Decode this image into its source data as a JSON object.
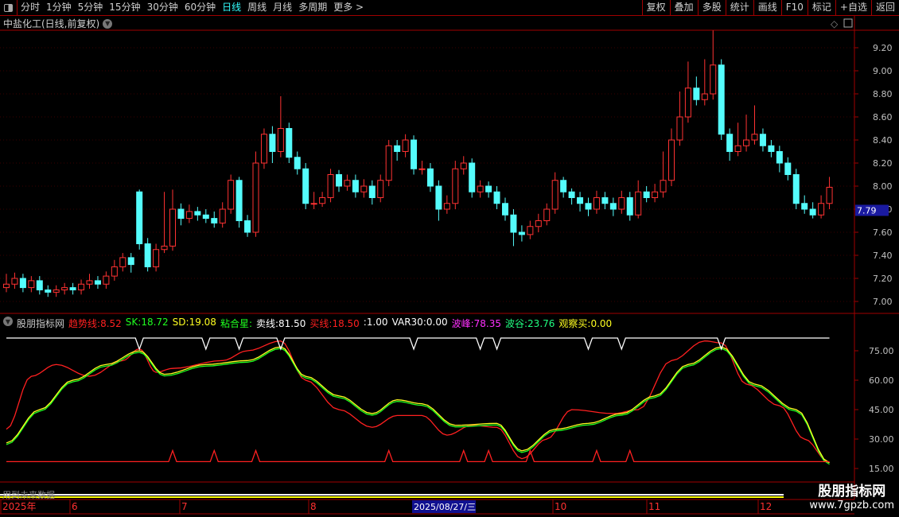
{
  "toolbar": {
    "periods": [
      "分时",
      "1分钟",
      "5分钟",
      "15分钟",
      "30分钟",
      "60分钟",
      "日线",
      "周线",
      "月线",
      "多周期",
      "更多 >"
    ],
    "active": "日线",
    "buttons": [
      "复权",
      "叠加",
      "多股",
      "统计",
      "画线",
      "F10",
      "标记",
      "+自选",
      "返回"
    ]
  },
  "chart_title": "中盐化工(日线,前复权)",
  "price_axis": {
    "ticks": [
      "9.20",
      "9.00",
      "8.80",
      "8.60",
      "8.40",
      "8.20",
      "8.00",
      "7.80",
      "7.60",
      "7.40",
      "7.20",
      "7.00"
    ],
    "current": "7.79"
  },
  "indicator": {
    "name": "股朋指标网",
    "values": [
      {
        "label": "趋势线:",
        "value": "8.52",
        "color": "#ff2020"
      },
      {
        "label": "SK:",
        "value": "18.72",
        "color": "#20ff20"
      },
      {
        "label": "SD:",
        "value": "19.08",
        "color": "#ffff20"
      },
      {
        "label": "粘合星:",
        "value": "",
        "color": "#20ff20"
      },
      {
        "label": "卖线:",
        "value": "81.50",
        "color": "#ffffff"
      },
      {
        "label": "买线:",
        "value": "18.50",
        "color": "#ff2020"
      },
      {
        "label": ":",
        "value": "1.00",
        "color": "#ffffff"
      },
      {
        "label": "VAR30:",
        "value": "0.00",
        "color": "#ffffff"
      },
      {
        "label": "波峰:",
        "value": "78.35",
        "color": "#ff30ff"
      },
      {
        "label": "波谷:",
        "value": "23.76",
        "color": "#20ff80"
      },
      {
        "label": "观察买:",
        "value": "0.00",
        "color": "#ffff20"
      }
    ],
    "ticks": [
      "75.00",
      "60.00",
      "45.00",
      "30.00",
      "15.00"
    ]
  },
  "footer_note": "用到未来数据",
  "date_axis": {
    "labels": [
      "2025年",
      "6",
      "7",
      "8",
      "10",
      "11",
      "12"
    ],
    "highlight": "2025/08/27/三"
  },
  "watermark": {
    "line1": "股朋指标网",
    "line2": "www.7gpzb.com"
  },
  "colors": {
    "up": "#ff3232",
    "down": "#54fcfc",
    "frame": "#a00000"
  },
  "chart_data": {
    "type": "candlestick",
    "ohlc": [
      [
        7.12,
        7.24,
        7.08,
        7.15
      ],
      [
        7.15,
        7.25,
        7.11,
        7.2
      ],
      [
        7.2,
        7.24,
        7.08,
        7.12
      ],
      [
        7.12,
        7.22,
        7.08,
        7.18
      ],
      [
        7.18,
        7.22,
        7.06,
        7.1
      ],
      [
        7.1,
        7.14,
        7.04,
        7.08
      ],
      [
        7.08,
        7.14,
        7.04,
        7.1
      ],
      [
        7.1,
        7.16,
        7.06,
        7.12
      ],
      [
        7.12,
        7.16,
        7.06,
        7.1
      ],
      [
        7.1,
        7.19,
        7.06,
        7.15
      ],
      [
        7.15,
        7.24,
        7.11,
        7.18
      ],
      [
        7.18,
        7.22,
        7.11,
        7.15
      ],
      [
        7.15,
        7.26,
        7.11,
        7.22
      ],
      [
        7.22,
        7.36,
        7.18,
        7.3
      ],
      [
        7.3,
        7.42,
        7.26,
        7.38
      ],
      [
        7.38,
        7.42,
        7.25,
        7.32
      ],
      [
        7.95,
        7.97,
        7.45,
        7.5
      ],
      [
        7.5,
        7.55,
        7.26,
        7.3
      ],
      [
        7.3,
        7.5,
        7.26,
        7.45
      ],
      [
        7.45,
        7.95,
        7.42,
        7.48
      ],
      [
        7.48,
        7.97,
        7.44,
        7.8
      ],
      [
        7.8,
        7.85,
        7.66,
        7.72
      ],
      [
        7.72,
        7.84,
        7.68,
        7.78
      ],
      [
        7.78,
        7.82,
        7.7,
        7.75
      ],
      [
        7.75,
        7.8,
        7.68,
        7.72
      ],
      [
        7.72,
        7.78,
        7.64,
        7.68
      ],
      [
        7.68,
        7.86,
        7.64,
        7.8
      ],
      [
        7.8,
        8.1,
        7.76,
        8.05
      ],
      [
        8.05,
        8.08,
        7.64,
        7.7
      ],
      [
        7.7,
        7.75,
        7.56,
        7.6
      ],
      [
        7.6,
        8.3,
        7.56,
        8.2
      ],
      [
        8.2,
        8.5,
        8.15,
        8.45
      ],
      [
        8.45,
        8.52,
        8.2,
        8.3
      ],
      [
        8.3,
        8.78,
        8.25,
        8.5
      ],
      [
        8.5,
        8.55,
        8.2,
        8.25
      ],
      [
        8.25,
        8.3,
        8.1,
        8.15
      ],
      [
        8.15,
        8.2,
        7.8,
        7.85
      ],
      [
        7.85,
        7.95,
        7.8,
        7.85
      ],
      [
        7.85,
        7.95,
        7.82,
        7.9
      ],
      [
        7.9,
        8.15,
        7.86,
        8.1
      ],
      [
        8.1,
        8.14,
        7.95,
        8.0
      ],
      [
        8.0,
        8.1,
        7.96,
        8.05
      ],
      [
        8.05,
        8.1,
        7.9,
        7.95
      ],
      [
        7.95,
        8.06,
        7.9,
        8.0
      ],
      [
        8.0,
        8.05,
        7.84,
        7.9
      ],
      [
        7.9,
        8.1,
        7.86,
        8.05
      ],
      [
        8.05,
        8.4,
        8.0,
        8.35
      ],
      [
        8.35,
        8.4,
        8.22,
        8.3
      ],
      [
        8.3,
        8.45,
        8.25,
        8.4
      ],
      [
        8.4,
        8.44,
        8.1,
        8.15
      ],
      [
        8.15,
        8.22,
        8.1,
        8.15
      ],
      [
        8.15,
        8.2,
        7.95,
        8.0
      ],
      [
        8.0,
        8.05,
        7.7,
        7.8
      ],
      [
        7.8,
        7.92,
        7.76,
        7.85
      ],
      [
        7.85,
        8.22,
        7.8,
        8.15
      ],
      [
        8.15,
        8.26,
        8.1,
        8.2
      ],
      [
        8.2,
        8.24,
        7.9,
        7.95
      ],
      [
        7.95,
        8.05,
        7.9,
        8.0
      ],
      [
        8.0,
        8.04,
        7.9,
        7.95
      ],
      [
        7.95,
        8.0,
        7.8,
        7.85
      ],
      [
        7.85,
        7.9,
        7.7,
        7.75
      ],
      [
        7.75,
        7.8,
        7.48,
        7.6
      ],
      [
        7.6,
        7.66,
        7.52,
        7.58
      ],
      [
        7.58,
        7.7,
        7.54,
        7.65
      ],
      [
        7.65,
        7.76,
        7.6,
        7.7
      ],
      [
        7.7,
        7.85,
        7.66,
        7.8
      ],
      [
        7.8,
        8.12,
        7.76,
        8.05
      ],
      [
        8.05,
        8.08,
        7.9,
        7.95
      ],
      [
        7.95,
        7.98,
        7.84,
        7.9
      ],
      [
        7.9,
        7.95,
        7.78,
        7.85
      ],
      [
        7.85,
        7.9,
        7.74,
        7.8
      ],
      [
        7.8,
        7.96,
        7.76,
        7.9
      ],
      [
        7.9,
        7.95,
        7.8,
        7.85
      ],
      [
        7.85,
        7.9,
        7.74,
        7.8
      ],
      [
        7.8,
        7.96,
        7.76,
        7.9
      ],
      [
        7.9,
        7.95,
        7.7,
        7.75
      ],
      [
        7.75,
        8.05,
        7.72,
        7.95
      ],
      [
        7.95,
        8.0,
        7.86,
        7.9
      ],
      [
        7.9,
        8.02,
        7.86,
        7.95
      ],
      [
        7.95,
        8.3,
        7.9,
        8.05
      ],
      [
        8.05,
        8.5,
        8.0,
        8.4
      ],
      [
        8.4,
        8.82,
        8.35,
        8.6
      ],
      [
        8.6,
        9.08,
        8.55,
        8.85
      ],
      [
        8.85,
        8.95,
        8.7,
        8.75
      ],
      [
        8.75,
        9.1,
        8.7,
        8.8
      ],
      [
        8.8,
        9.35,
        8.75,
        9.05
      ],
      [
        9.05,
        9.1,
        8.4,
        8.45
      ],
      [
        8.45,
        8.5,
        8.22,
        8.3
      ],
      [
        8.3,
        8.55,
        8.26,
        8.35
      ],
      [
        8.35,
        8.62,
        8.3,
        8.4
      ],
      [
        8.4,
        8.7,
        8.36,
        8.45
      ],
      [
        8.45,
        8.5,
        8.3,
        8.35
      ],
      [
        8.35,
        8.4,
        8.25,
        8.3
      ],
      [
        8.3,
        8.35,
        8.12,
        8.2
      ],
      [
        8.2,
        8.25,
        8.05,
        8.1
      ],
      [
        8.1,
        8.15,
        7.8,
        7.85
      ],
      [
        7.85,
        7.92,
        7.76,
        7.8
      ],
      [
        7.8,
        7.86,
        7.72,
        7.75
      ],
      [
        7.75,
        7.92,
        7.72,
        7.85
      ],
      [
        7.85,
        8.08,
        7.8,
        7.99
      ]
    ],
    "ylim": [
      7.0,
      9.2
    ],
    "indicator_series": {
      "trend": [
        [
          0,
          35
        ],
        [
          3,
          62
        ],
        [
          6,
          68
        ],
        [
          10,
          62
        ],
        [
          14,
          70
        ],
        [
          16,
          76
        ],
        [
          18,
          64
        ],
        [
          20,
          66
        ],
        [
          26,
          70
        ],
        [
          29,
          75
        ],
        [
          33,
          80
        ],
        [
          36,
          60
        ],
        [
          40,
          45
        ],
        [
          44,
          36
        ],
        [
          47,
          42
        ],
        [
          50,
          42
        ],
        [
          53,
          32
        ],
        [
          56,
          37
        ],
        [
          59,
          36
        ],
        [
          62,
          20
        ],
        [
          65,
          30
        ],
        [
          68,
          45
        ],
        [
          73,
          43
        ],
        [
          76,
          45
        ],
        [
          80,
          70
        ],
        [
          84,
          80
        ],
        [
          86,
          79
        ],
        [
          89,
          58
        ],
        [
          93,
          47
        ],
        [
          96,
          30
        ],
        [
          99,
          18
        ]
      ],
      "sd": [
        [
          0,
          28
        ],
        [
          4,
          45
        ],
        [
          8,
          60
        ],
        [
          12,
          68
        ],
        [
          16,
          75
        ],
        [
          19,
          63
        ],
        [
          24,
          68
        ],
        [
          29,
          70
        ],
        [
          33,
          77
        ],
        [
          36,
          62
        ],
        [
          40,
          52
        ],
        [
          44,
          43
        ],
        [
          47,
          50
        ],
        [
          50,
          48
        ],
        [
          54,
          37
        ],
        [
          59,
          38
        ],
        [
          62,
          24
        ],
        [
          66,
          35
        ],
        [
          70,
          38
        ],
        [
          74,
          43
        ],
        [
          78,
          52
        ],
        [
          82,
          68
        ],
        [
          86,
          77
        ],
        [
          90,
          58
        ],
        [
          95,
          45
        ],
        [
          99,
          18
        ]
      ],
      "sell_line": 81.5,
      "buy_line": 18.5,
      "sell_dips": [
        16,
        24,
        28,
        33,
        49,
        57,
        59,
        70,
        74,
        86
      ],
      "buy_peaks": [
        20,
        25,
        30,
        46,
        55,
        58,
        63,
        71,
        75
      ],
      "ylim": [
        10,
        85
      ]
    }
  }
}
